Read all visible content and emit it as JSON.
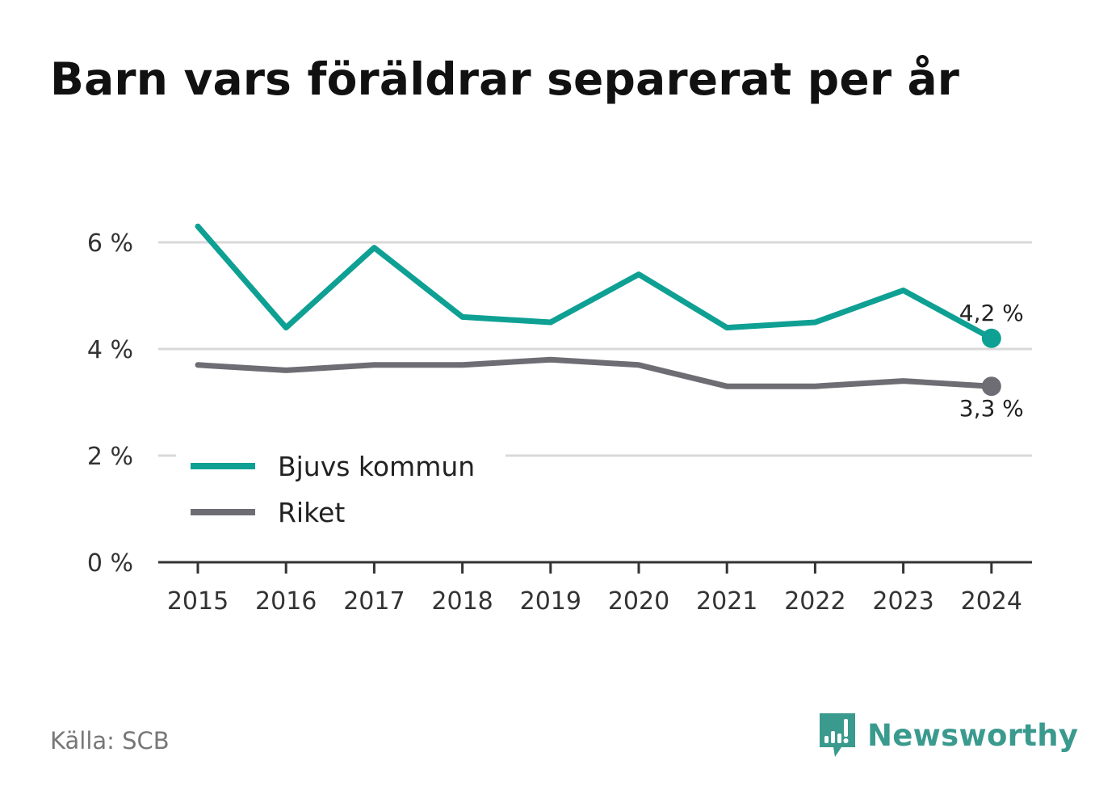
{
  "title": "Barn vars föräldrar separerat per år",
  "source": "Källa: SCB",
  "brand": "Newsworthy",
  "colors": {
    "bjuv": "#0fa094",
    "riket": "#6e6d74",
    "grid": "#d9d9d9",
    "axis": "#333333",
    "text": "#333333"
  },
  "chart_data": {
    "type": "line",
    "x": [
      "2015",
      "2016",
      "2017",
      "2018",
      "2019",
      "2020",
      "2021",
      "2022",
      "2023",
      "2024"
    ],
    "series": [
      {
        "name": "Bjuvs kommun",
        "color": "#0fa094",
        "values": [
          6.3,
          4.4,
          5.9,
          4.6,
          4.5,
          5.4,
          4.4,
          4.5,
          5.1,
          4.2
        ],
        "end_label": "4,2 %"
      },
      {
        "name": "Riket",
        "color": "#6e6d74",
        "values": [
          3.7,
          3.6,
          3.7,
          3.7,
          3.8,
          3.7,
          3.3,
          3.3,
          3.4,
          3.3
        ],
        "end_label": "3,3 %"
      }
    ],
    "yticks": [
      0,
      2,
      4,
      6
    ],
    "ytick_labels": [
      "0 %",
      "2 %",
      "4 %",
      "6 %"
    ],
    "ylim": [
      0,
      6.6
    ],
    "grid": true,
    "legend_position": "bottom-left"
  }
}
